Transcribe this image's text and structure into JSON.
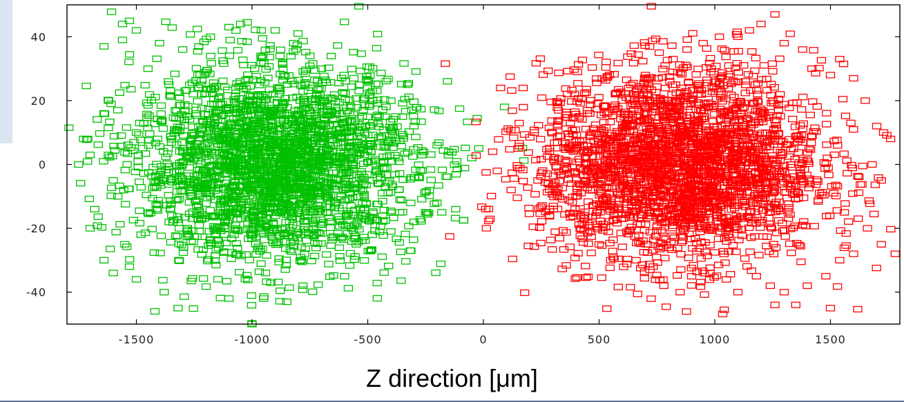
{
  "chart_data": {
    "type": "scatter",
    "title": "",
    "xlabel": "Z direction [μm]",
    "ylabel": "",
    "xlim": [
      -1800,
      1800
    ],
    "ylim": [
      -50,
      50
    ],
    "xticks": [
      -1500,
      -1000,
      -500,
      0,
      500,
      1000,
      1500
    ],
    "yticks": [
      -40,
      -20,
      0,
      20,
      40
    ],
    "xtick_labels": [
      "-1500",
      "-1000",
      "-500",
      "0",
      "500",
      "1000",
      "1500"
    ],
    "ytick_labels": [
      "-40",
      "-20",
      "0",
      "20",
      "40"
    ],
    "grid": false,
    "marker": "open-square",
    "series": [
      {
        "color": "#00c000",
        "center": [
          -900,
          0
        ],
        "spread": [
          300,
          15
        ],
        "count": 2600,
        "values": [
          [
            -1728,
            8
          ],
          [
            -1710,
            8
          ],
          [
            -1640,
            16
          ],
          [
            -1560,
            39
          ],
          [
            -1560,
            44
          ],
          [
            -1530,
            45
          ],
          [
            -1500,
            42
          ],
          [
            -1640,
            37
          ],
          [
            -1580,
            17
          ],
          [
            -1640,
            -30
          ],
          [
            -1600,
            -34
          ],
          [
            -1530,
            -32
          ],
          [
            -1500,
            -36
          ],
          [
            -1480,
            -22
          ],
          [
            -1420,
            -46
          ],
          [
            -1380,
            -40
          ],
          [
            -1320,
            -45
          ],
          [
            -1100,
            -42
          ],
          [
            -1000,
            -50
          ],
          [
            -950,
            -42
          ],
          [
            -850,
            -43
          ],
          [
            -780,
            -38
          ],
          [
            -600,
            -35
          ],
          [
            -550,
            -25
          ],
          [
            -480,
            -22
          ],
          [
            -400,
            -21
          ],
          [
            -300,
            -18
          ],
          [
            -250,
            -15
          ],
          [
            -180,
            -15
          ],
          [
            -120,
            -14
          ],
          [
            -50,
            2
          ],
          [
            -20,
            5
          ],
          [
            -150,
            4
          ],
          [
            -200,
            6
          ],
          [
            -300,
            12
          ],
          [
            -350,
            15
          ],
          [
            -400,
            20
          ],
          [
            -480,
            23
          ],
          [
            -560,
            27
          ],
          [
            -700,
            30
          ],
          [
            -750,
            34
          ],
          [
            -820,
            38
          ],
          [
            -900,
            42
          ],
          [
            -960,
            42
          ],
          [
            -1050,
            44
          ],
          [
            -1100,
            43
          ],
          [
            -1180,
            40
          ],
          [
            -1300,
            36
          ],
          [
            -1400,
            38
          ],
          [
            -1450,
            30
          ],
          [
            -1700,
            3
          ],
          [
            -1680,
            -14
          ],
          [
            -1750,
            0
          ],
          [
            -1620,
            20
          ],
          [
            -1580,
            -10
          ],
          [
            -1550,
            -25
          ],
          [
            -1700,
            -20
          ],
          [
            -1600,
            -5
          ],
          [
            -1500,
            10
          ],
          [
            -1450,
            -15
          ]
        ]
      },
      {
        "color": "#ff0000",
        "center": [
          850,
          0
        ],
        "spread": [
          300,
          15
        ],
        "count": 2600,
        "values": [
          [
            10,
            -14
          ],
          [
            40,
            4
          ],
          [
            60,
            -2
          ],
          [
            120,
            -8
          ],
          [
            150,
            5
          ],
          [
            220,
            10
          ],
          [
            280,
            -6
          ],
          [
            320,
            12
          ],
          [
            400,
            -10
          ],
          [
            450,
            16
          ],
          [
            500,
            -25
          ],
          [
            550,
            -30
          ],
          [
            600,
            20
          ],
          [
            650,
            22
          ],
          [
            700,
            28
          ],
          [
            760,
            35
          ],
          [
            820,
            33
          ],
          [
            880,
            36
          ],
          [
            950,
            38
          ],
          [
            1020,
            40
          ],
          [
            1100,
            40
          ],
          [
            1150,
            42
          ],
          [
            1200,
            44
          ],
          [
            1260,
            47
          ],
          [
            1300,
            38
          ],
          [
            1380,
            36
          ],
          [
            1420,
            30
          ],
          [
            1500,
            28
          ],
          [
            1540,
            33
          ],
          [
            1600,
            27
          ],
          [
            1650,
            20
          ],
          [
            1700,
            12
          ],
          [
            1730,
            10
          ],
          [
            1760,
            8
          ],
          [
            1780,
            -28
          ],
          [
            1720,
            -25
          ],
          [
            1660,
            -20
          ],
          [
            1620,
            -17
          ],
          [
            1600,
            -28
          ],
          [
            1540,
            -30
          ],
          [
            1480,
            -35
          ],
          [
            1400,
            -38
          ],
          [
            1350,
            -44
          ],
          [
            1300,
            -40
          ],
          [
            1240,
            -38
          ],
          [
            1180,
            -35
          ],
          [
            1100,
            -40
          ],
          [
            1050,
            -36
          ],
          [
            980,
            -34
          ],
          [
            900,
            -35
          ],
          [
            850,
            -40
          ],
          [
            780,
            -38
          ],
          [
            720,
            -33
          ],
          [
            660,
            -30
          ],
          [
            1500,
            -45
          ],
          [
            1560,
            -15
          ],
          [
            1680,
            0
          ],
          [
            1720,
            -5
          ],
          [
            1260,
            -44
          ],
          [
            380,
            -6
          ]
        ]
      }
    ]
  }
}
